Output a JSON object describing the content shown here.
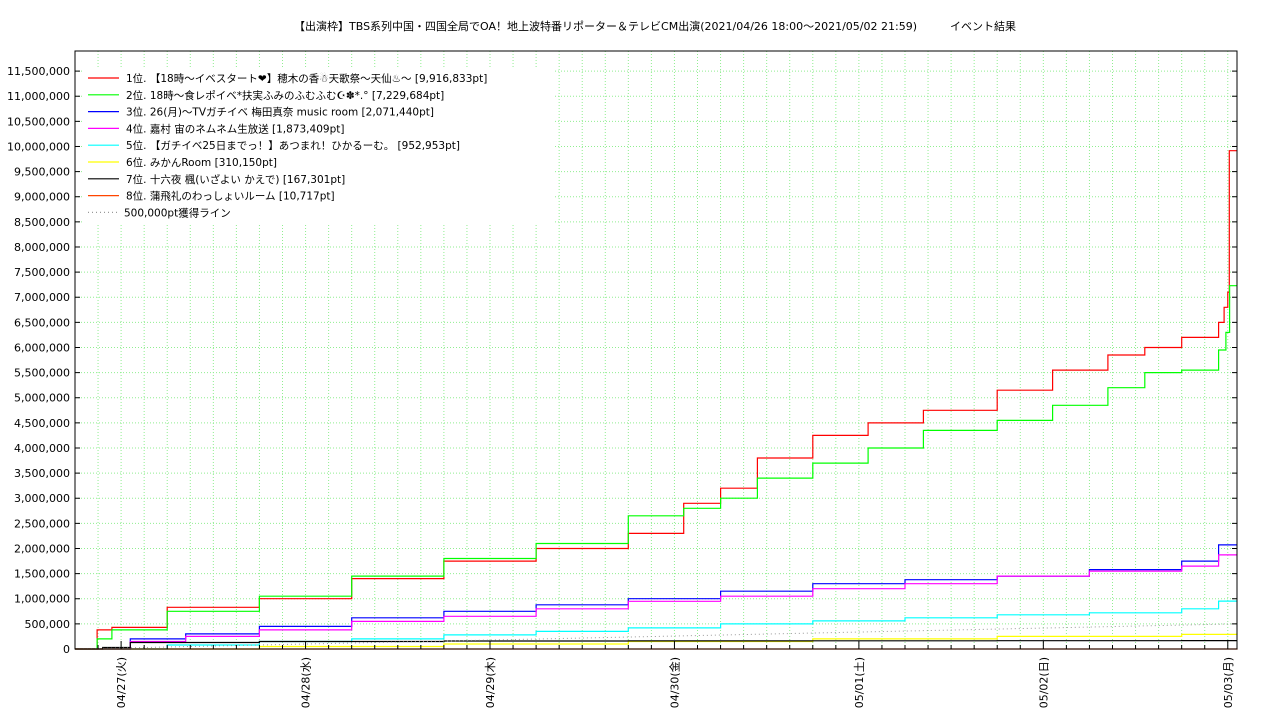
{
  "chart_data": {
    "type": "line",
    "title": "【出演枠】TBS系列中国・四国全局でOA！地上波特番リポーター＆テレビCM出演(2021/04/26 18:00〜2021/05/02 21:59)　　　イベント結果",
    "xlabel": "",
    "ylabel": "",
    "x_ticks": [
      "04/27(火)",
      "04/28(水)",
      "04/29(木)",
      "04/30(金)",
      "05/01(土)",
      "05/02(日)",
      "05/03(月)"
    ],
    "x_range": [
      "2021/04/26 18:00",
      "2021/05/03 00:00"
    ],
    "ylim": [
      0,
      11900000
    ],
    "y_ticks": [
      "0",
      "500,000",
      "1,000,000",
      "1,500,000",
      "2,000,000",
      "2,500,000",
      "3,000,000",
      "3,500,000",
      "4,000,000",
      "4,500,000",
      "5,000,000",
      "5,500,000",
      "6,000,000",
      "6,500,000",
      "7,000,000",
      "7,500,000",
      "8,000,000",
      "8,500,000",
      "9,000,000",
      "9,500,000",
      "10,000,000",
      "10,500,000",
      "11,000,000",
      "11,500,000"
    ],
    "grid": true,
    "legend_position": "top-left",
    "series": [
      {
        "name": "1位. 【18時〜イベスタート❤】穂木の香☃天歌祭〜天仙♨〜 [9,916,833pt]",
        "color": "#ff0000",
        "x": [
          0,
          0.12,
          0.2,
          0.5,
          1.0,
          1.5,
          2.0,
          2.5,
          3.0,
          3.3,
          3.5,
          3.7,
          4.0,
          4.3,
          4.6,
          5.0,
          5.3,
          5.6,
          5.8,
          6.0,
          6.2,
          6.23,
          6.25,
          6.258,
          6.3
        ],
        "values": [
          0,
          380000,
          430000,
          830000,
          1000000,
          1400000,
          1750000,
          2000000,
          2300000,
          2900000,
          3200000,
          3800000,
          4250000,
          4500000,
          4750000,
          5150000,
          5550000,
          5850000,
          6000000,
          6200000,
          6500000,
          6800000,
          7100000,
          9916833,
          9916833
        ]
      },
      {
        "name": "2位. 18時〜食レポイベ*扶実ふみのふむふむ☪✽*.° [7,229,684pt]",
        "color": "#00ff00",
        "x": [
          0,
          0.12,
          0.2,
          0.5,
          1.0,
          1.5,
          2.0,
          2.5,
          3.0,
          3.3,
          3.5,
          3.7,
          4.0,
          4.3,
          4.6,
          5.0,
          5.3,
          5.6,
          5.8,
          6.0,
          6.2,
          6.24,
          6.26,
          6.3
        ],
        "values": [
          0,
          200000,
          380000,
          750000,
          1050000,
          1450000,
          1800000,
          2100000,
          2650000,
          2800000,
          3000000,
          3400000,
          3700000,
          4000000,
          4350000,
          4550000,
          4850000,
          5200000,
          5500000,
          5550000,
          5950000,
          6300000,
          7229684,
          7229684
        ]
      },
      {
        "name": "3位. 26(月)〜TVガチイベ 梅田真奈 music room [2,071,440pt]",
        "color": "#0000ff",
        "x": [
          0,
          0.3,
          0.6,
          1.0,
          1.5,
          2.0,
          2.5,
          3.0,
          3.5,
          4.0,
          4.5,
          5.0,
          5.5,
          6.0,
          6.2,
          6.3
        ],
        "values": [
          0,
          200000,
          300000,
          450000,
          620000,
          750000,
          880000,
          1000000,
          1150000,
          1300000,
          1380000,
          1450000,
          1580000,
          1750000,
          2071440,
          2071440
        ]
      },
      {
        "name": "4位. 嘉村 宙のネムネム生放送 [1,873,409pt]",
        "color": "#ff00ff",
        "x": [
          0,
          0.3,
          0.6,
          1.0,
          1.5,
          2.0,
          2.5,
          3.0,
          3.5,
          4.0,
          4.5,
          5.0,
          5.5,
          6.0,
          6.2,
          6.3
        ],
        "values": [
          0,
          150000,
          250000,
          380000,
          550000,
          650000,
          800000,
          950000,
          1050000,
          1200000,
          1300000,
          1450000,
          1550000,
          1650000,
          1873409,
          1873409
        ]
      },
      {
        "name": "5位. 【ガチイベ25日までっ！】あつまれ！ひかるーむ。 [952,953pt]",
        "color": "#00ffff",
        "x": [
          0,
          0.5,
          1.0,
          1.5,
          2.0,
          2.5,
          3.0,
          3.5,
          4.0,
          4.5,
          5.0,
          5.5,
          6.0,
          6.2,
          6.3
        ],
        "values": [
          0,
          80000,
          150000,
          200000,
          280000,
          350000,
          420000,
          500000,
          560000,
          620000,
          680000,
          720000,
          800000,
          952953,
          952953
        ]
      },
      {
        "name": "6位. みかんRoom [310,150pt]",
        "color": "#ffff00",
        "x": [
          0,
          1.0,
          2.0,
          3.0,
          4.0,
          5.0,
          6.0,
          6.3
        ],
        "values": [
          0,
          50000,
          100000,
          150000,
          200000,
          250000,
          290000,
          310150
        ]
      },
      {
        "name": "7位. 十六夜 楓(いざよい かえで) [167,301pt]",
        "color": "#000000",
        "x": [
          0,
          0.15,
          0.3,
          1.0,
          2.0,
          3.0,
          4.0,
          5.0,
          6.0,
          6.3
        ],
        "values": [
          0,
          30000,
          130000,
          150000,
          160000,
          162000,
          164000,
          165000,
          167000,
          167301
        ]
      },
      {
        "name": "8位. 蒲飛礼のわっしょいルーム [10,717pt]",
        "color": "#ff4500",
        "x": [
          0,
          6.3
        ],
        "values": [
          0,
          10717
        ]
      },
      {
        "name": "500,000pt獲得ライン",
        "color": "#999999",
        "x": [
          0,
          6.3
        ],
        "values": [
          0,
          500000
        ]
      }
    ]
  }
}
